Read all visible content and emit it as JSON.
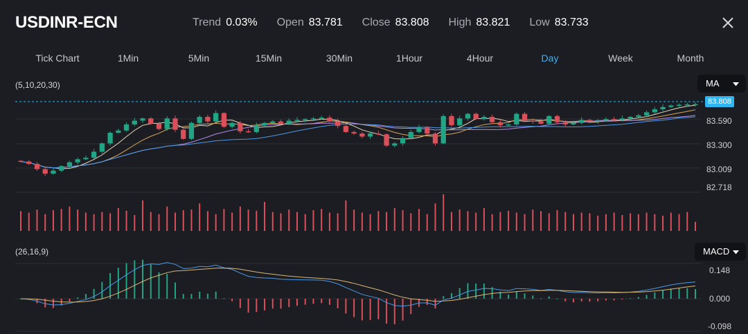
{
  "header": {
    "symbol": "USDINR-ECN",
    "stats": [
      {
        "label": "Trend",
        "value": "0.03%"
      },
      {
        "label": "Open",
        "value": "83.781"
      },
      {
        "label": "Close",
        "value": "83.808"
      },
      {
        "label": "High",
        "value": "83.821"
      },
      {
        "label": "Low",
        "value": "83.733"
      }
    ]
  },
  "tabs": [
    {
      "label": "Tick Chart"
    },
    {
      "label": "1Min"
    },
    {
      "label": "5Min"
    },
    {
      "label": "15Min"
    },
    {
      "label": "30Min"
    },
    {
      "label": "1Hour"
    },
    {
      "label": "4Hour"
    },
    {
      "label": "Day",
      "active": true
    },
    {
      "label": "Week"
    },
    {
      "label": "Month"
    }
  ],
  "main_indicator": {
    "params": "(5,10,20,30)",
    "selector": "MA"
  },
  "sub_indicator": {
    "params": "(26,16,9)",
    "selector": "MACD"
  },
  "colors": {
    "up": "#22a584",
    "down": "#d9505a",
    "accent": "#3db2f0",
    "background": "#1c1d22"
  },
  "icons": {
    "close": "close-icon",
    "caret": "caret-down-icon"
  },
  "chart_data": [
    {
      "type": "candlestick",
      "title": "USDINR-ECN Day",
      "current_price": "83.808",
      "y_ticks": [
        "83.590",
        "83.300",
        "83.009",
        "82.718"
      ],
      "ylim": [
        82.718,
        83.85
      ],
      "closes": [
        83.05,
        83.02,
        82.95,
        82.89,
        82.93,
        82.99,
        83.04,
        83.08,
        83.1,
        83.18,
        83.29,
        83.43,
        83.46,
        83.54,
        83.59,
        83.62,
        83.55,
        83.48,
        83.62,
        83.47,
        83.35,
        83.56,
        83.64,
        83.58,
        83.69,
        83.51,
        83.56,
        83.45,
        83.44,
        83.53,
        83.56,
        83.58,
        83.55,
        83.59,
        83.6,
        83.61,
        83.62,
        83.63,
        83.58,
        83.52,
        83.44,
        83.42,
        83.38,
        83.42,
        83.41,
        83.26,
        83.29,
        83.36,
        83.44,
        83.5,
        83.42,
        83.29,
        83.65,
        83.53,
        83.62,
        83.68,
        83.61,
        83.64,
        83.57,
        83.53,
        83.54,
        83.68,
        83.59,
        83.58,
        83.55,
        83.65,
        83.57,
        83.54,
        83.56,
        83.6,
        83.58,
        83.59,
        83.61,
        83.6,
        83.62,
        83.64,
        83.66,
        83.7,
        83.74,
        83.77,
        83.79,
        83.8,
        83.805,
        83.808
      ],
      "ma_lines": [
        "5",
        "10",
        "20",
        "30"
      ]
    },
    {
      "type": "bar",
      "title": "Volume",
      "values": [
        0.65,
        0.6,
        0.7,
        0.55,
        0.68,
        0.72,
        0.8,
        0.7,
        0.6,
        0.55,
        0.62,
        0.58,
        0.75,
        0.66,
        0.52,
        1.0,
        0.62,
        0.55,
        0.8,
        0.6,
        0.68,
        0.7,
        0.9,
        0.65,
        0.55,
        0.72,
        0.6,
        0.8,
        0.7,
        0.66,
        0.95,
        0.62,
        0.58,
        0.7,
        0.62,
        0.55,
        0.68,
        0.72,
        0.6,
        0.58,
        1.0,
        0.7,
        0.6,
        0.55,
        0.65,
        0.62,
        0.75,
        0.68,
        0.58,
        0.72,
        0.55,
        0.9,
        1.2,
        0.62,
        0.7,
        0.65,
        0.6,
        0.75,
        0.55,
        0.62,
        0.66,
        0.6,
        0.55,
        0.7,
        0.65,
        0.58,
        0.68,
        0.62,
        0.55,
        0.6,
        0.58,
        0.5,
        0.55,
        0.6,
        0.52,
        0.58,
        0.55,
        0.6,
        0.55,
        0.5,
        0.6,
        0.55,
        0.62,
        0.3
      ]
    },
    {
      "type": "macd",
      "title": "MACD",
      "y_ticks": [
        "0.148",
        "0.000",
        "-0.098"
      ],
      "ylim": [
        -0.098,
        0.148
      ]
    }
  ]
}
